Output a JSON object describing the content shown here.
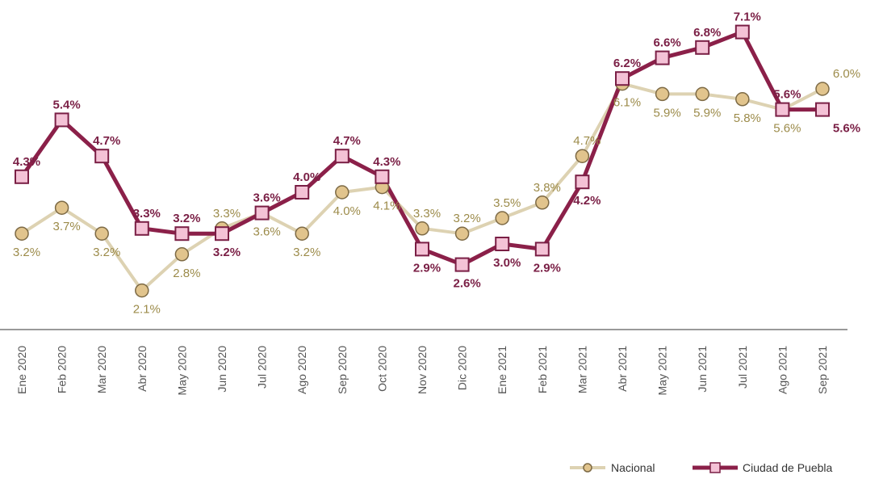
{
  "chart_data": {
    "type": "line",
    "title": "",
    "xlabel": "",
    "ylabel": "",
    "ylim": [
      0,
      8
    ],
    "grid": false,
    "legend_position": "bottom-right",
    "categories": [
      "Ene 2020",
      "Feb 2020",
      "Mar 2020",
      "Abr 2020",
      "May 2020",
      "Jun 2020",
      "Jul 2020",
      "Ago 2020",
      "Sep 2020",
      "Oct 2020",
      "Nov 2020",
      "Dic 2020",
      "Ene 2021",
      "Feb 2021",
      "Mar 2021",
      "Abr 2021",
      "May 2021",
      "Jun 2021",
      "Jul 2021",
      "Ago 2021",
      "Sep 2021"
    ],
    "series": [
      {
        "name": "Nacional",
        "color": "#ddd2b2",
        "marker_fill": "#e1c48d",
        "marker_stroke": "#7d6a45",
        "values": [
          3.2,
          3.7,
          3.2,
          2.1,
          2.8,
          3.3,
          3.6,
          3.2,
          4.0,
          4.1,
          3.3,
          3.2,
          3.5,
          3.8,
          4.7,
          6.1,
          5.9,
          5.9,
          5.8,
          5.6,
          6.0
        ],
        "labels": [
          "3.2%",
          "3.7%",
          "3.2%",
          "2.1%",
          "2.8%",
          "3.3%",
          "3.6%",
          "3.2%",
          "4.0%",
          "4.1%",
          "3.3%",
          "3.2%",
          "3.5%",
          "3.8%",
          "4.7%",
          "6.1%",
          "5.9%",
          "5.9%",
          "5.8%",
          "5.6%",
          "6.0%"
        ]
      },
      {
        "name": "Ciudad de Puebla",
        "color": "#8b2049",
        "marker_fill": "#f4c2d6",
        "marker_stroke": "#7a1f45",
        "values": [
          4.3,
          5.4,
          4.7,
          3.3,
          3.2,
          3.2,
          3.6,
          4.0,
          4.7,
          4.3,
          2.9,
          2.6,
          3.0,
          2.9,
          4.2,
          6.2,
          6.6,
          6.8,
          7.1,
          5.6,
          5.6
        ],
        "labels": [
          "4.3%",
          "5.4%",
          "4.7%",
          "3.3%",
          "3.2%",
          "3.2%",
          "3.6%",
          "4.0%",
          "4.7%",
          "4.3%",
          "2.9%",
          "2.6%",
          "3.0%",
          "2.9%",
          "4.2%",
          "6.2%",
          "6.6%",
          "6.8%",
          "7.1%",
          "5.6%",
          "5.6%"
        ]
      }
    ]
  }
}
